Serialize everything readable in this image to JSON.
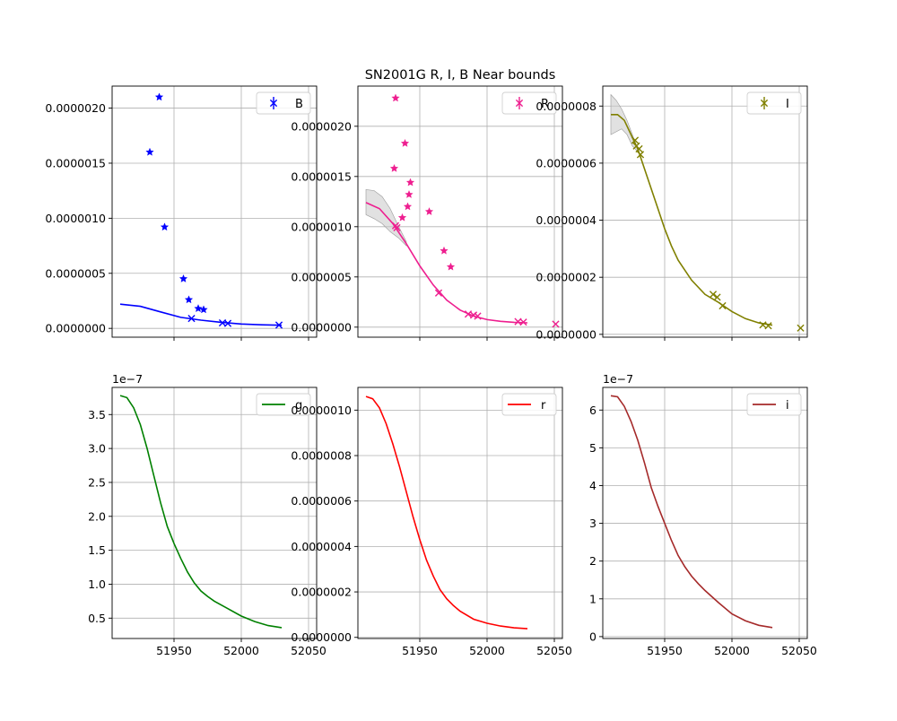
{
  "figure": {
    "title": "SN2001G  R, I, B Near bounds"
  },
  "chart_data": [
    {
      "type": "line",
      "legend": "B",
      "legend_location": "upper-right",
      "grid": true,
      "color": "#0000ff",
      "xlim": [
        51904,
        52056
      ],
      "ylim": [
        -8e-08,
        2.2e-06
      ],
      "xticks": [
        51950,
        52000,
        52050
      ],
      "xtick_labels": [
        "",
        "",
        ""
      ],
      "yticks": [
        0,
        5e-07,
        1e-06,
        1.5e-06,
        2e-06
      ],
      "ytick_labels": [
        "0.0000000",
        "0.0000005",
        "0.0000010",
        "0.0000015",
        "0.0000020"
      ],
      "scale_label": "",
      "model": {
        "x": [
          51910,
          51925,
          51940,
          51955,
          51970,
          51985,
          52000,
          52015,
          52030
        ],
        "y": [
          2.2e-07,
          2e-07,
          1.5e-07,
          1e-07,
          7.5e-08,
          5.5e-08,
          4e-08,
          3.2e-08,
          2.8e-08
        ]
      },
      "band": null,
      "detections": {
        "x": [
          51932,
          51939,
          51943,
          51957,
          51961,
          51968,
          51972
        ],
        "y": [
          1.6e-06,
          2.1e-06,
          9.2e-07,
          4.5e-07,
          2.6e-07,
          1.8e-07,
          1.7e-07
        ]
      },
      "upper_limits": {
        "x": [
          51963,
          51986,
          51990,
          52028
        ],
        "y": [
          9e-08,
          5e-08,
          4.5e-08,
          3e-08
        ]
      }
    },
    {
      "type": "line",
      "legend": "R",
      "legend_location": "upper-right",
      "grid": true,
      "color": "#ee1e8f",
      "xlim": [
        51904,
        52056
      ],
      "ylim": [
        -1e-07,
        2.4e-06
      ],
      "xticks": [
        51950,
        52000,
        52050
      ],
      "xtick_labels": [
        "",
        "",
        ""
      ],
      "yticks": [
        0,
        5e-07,
        1e-06,
        1.5e-06,
        2e-06
      ],
      "ytick_labels": [
        "0.0000000",
        "0.0000005",
        "0.0000010",
        "0.0000015",
        "0.0000020"
      ],
      "scale_label": "",
      "model": {
        "x": [
          51910,
          51920,
          51930,
          51940,
          51950,
          51960,
          51970,
          51980,
          51990,
          52000,
          52010,
          52020,
          52030
        ],
        "y": [
          1.24e-06,
          1.18e-06,
          1.03e-06,
          8.3e-07,
          6.1e-07,
          4.2e-07,
          2.7e-07,
          1.7e-07,
          1.1e-07,
          7.5e-08,
          5.8e-08,
          4.8e-08,
          4.3e-08
        ]
      },
      "band": {
        "x": [
          51910,
          51916,
          51922,
          51928,
          51934,
          51940
        ],
        "upper": [
          1.37e-06,
          1.36e-06,
          1.3e-06,
          1.18e-06,
          1.01e-06,
          8.5e-07
        ],
        "lower": [
          1.12e-06,
          1.08e-06,
          1.03e-06,
          9.5e-07,
          8.9e-07,
          8.1e-07
        ]
      },
      "detections": {
        "x": [
          51931,
          51932,
          51937,
          51939,
          51941,
          51942,
          51943,
          51957,
          51968,
          51973
        ],
        "y": [
          1.58e-06,
          2.28e-06,
          1.09e-06,
          1.83e-06,
          1.2e-06,
          1.32e-06,
          1.44e-06,
          1.15e-06,
          7.6e-07,
          6e-07
        ]
      },
      "upper_limits": {
        "x": [
          51932,
          51933,
          51964,
          51986,
          51990,
          51993,
          52023,
          52027,
          52051
        ],
        "y": [
          1.01e-06,
          9.9e-07,
          3.4e-07,
          1.3e-07,
          1.2e-07,
          1.1e-07,
          5.5e-08,
          5e-08,
          3e-08
        ]
      }
    },
    {
      "type": "line",
      "legend": "I",
      "legend_location": "upper-right",
      "grid": true,
      "color": "#808000",
      "xlim": [
        51904,
        52056
      ],
      "ylim": [
        -1e-08,
        8.7e-07
      ],
      "xticks": [
        51950,
        52000,
        52050
      ],
      "xtick_labels": [
        "",
        "",
        ""
      ],
      "yticks": [
        0,
        2e-07,
        4e-07,
        6e-07,
        8e-07
      ],
      "ytick_labels": [
        "0.0000000",
        "0.0000002",
        "0.0000004",
        "0.0000006",
        "0.0000008"
      ],
      "scale_label": "",
      "model": {
        "x": [
          51910,
          51915,
          51920,
          51925,
          51930,
          51935,
          51940,
          51945,
          51950,
          51955,
          51960,
          51970,
          51980,
          51990,
          52000,
          52010,
          52020,
          52030
        ],
        "y": [
          7.7e-07,
          7.7e-07,
          7.5e-07,
          7e-07,
          6.5e-07,
          5.8e-07,
          5.1e-07,
          4.4e-07,
          3.7e-07,
          3.1e-07,
          2.6e-07,
          1.9e-07,
          1.4e-07,
          1.12e-07,
          8e-08,
          5.5e-08,
          4e-08,
          3.2e-08
        ]
      },
      "band": {
        "x": [
          51910,
          51914,
          51918,
          51922,
          51926,
          51930
        ],
        "upper": [
          8.4e-07,
          8.2e-07,
          7.9e-07,
          7.5e-07,
          7e-07,
          6.5e-07
        ],
        "lower": [
          7e-07,
          7.1e-07,
          7.2e-07,
          7e-07,
          6.6e-07,
          6.4e-07
        ]
      },
      "detections": {
        "x": [],
        "y": []
      },
      "upper_limits": {
        "x": [
          51928,
          51929,
          51931,
          51932,
          51986,
          51989,
          51993,
          52023,
          52027,
          52051
        ],
        "y": [
          6.8e-07,
          6.6e-07,
          6.5e-07,
          6.3e-07,
          1.4e-07,
          1.3e-07,
          1e-07,
          3.3e-08,
          3e-08,
          2.2e-08
        ]
      }
    },
    {
      "type": "line",
      "legend": "g",
      "legend_location": "upper-right",
      "grid": true,
      "color": "#008000",
      "xlim": [
        51904,
        52056
      ],
      "ylim": [
        0.2,
        3.9
      ],
      "xticks": [
        51950,
        52000,
        52050
      ],
      "xtick_labels": [
        "51950",
        "52000",
        "52050"
      ],
      "yticks": [
        0.5,
        1.0,
        1.5,
        2.0,
        2.5,
        3.0,
        3.5
      ],
      "ytick_labels": [
        "0.5",
        "1.0",
        "1.5",
        "2.0",
        "2.5",
        "3.0",
        "3.5"
      ],
      "scale_label": "1e−7",
      "model": {
        "x": [
          51910,
          51915,
          51920,
          51925,
          51930,
          51935,
          51940,
          51945,
          51950,
          51955,
          51960,
          51965,
          51970,
          51975,
          51980,
          51990,
          52000,
          52010,
          52020,
          52030
        ],
        "y": [
          3.78,
          3.75,
          3.6,
          3.35,
          3.0,
          2.6,
          2.2,
          1.85,
          1.6,
          1.38,
          1.18,
          1.02,
          0.9,
          0.82,
          0.75,
          0.64,
          0.53,
          0.45,
          0.39,
          0.36
        ]
      },
      "band": null,
      "detections": {
        "x": [],
        "y": []
      },
      "upper_limits": {
        "x": [],
        "y": []
      }
    },
    {
      "type": "line",
      "legend": "r",
      "legend_location": "upper-right",
      "grid": true,
      "color": "#ff0000",
      "xlim": [
        51904,
        52056
      ],
      "ylim": [
        -5e-09,
        1.1e-06
      ],
      "xticks": [
        51950,
        52000,
        52050
      ],
      "xtick_labels": [
        "51950",
        "52000",
        "52050"
      ],
      "yticks": [
        0,
        2e-07,
        4e-07,
        6e-07,
        8e-07,
        1e-06
      ],
      "ytick_labels": [
        "0.0000000",
        "0.0000002",
        "0.0000004",
        "0.0000006",
        "0.0000008",
        "0.0000010"
      ],
      "scale_label": "",
      "model": {
        "x": [
          51910,
          51915,
          51920,
          51925,
          51930,
          51935,
          51940,
          51945,
          51950,
          51955,
          51960,
          51965,
          51970,
          51975,
          51980,
          51990,
          52000,
          52010,
          52020,
          52030
        ],
        "y": [
          1.06e-06,
          1.05e-06,
          1.01e-06,
          9.4e-07,
          8.5e-07,
          7.5e-07,
          6.4e-07,
          5.3e-07,
          4.3e-07,
          3.4e-07,
          2.7e-07,
          2.1e-07,
          1.7e-07,
          1.4e-07,
          1.15e-07,
          8e-08,
          6.2e-08,
          5e-08,
          4.2e-08,
          3.8e-08
        ]
      },
      "band": null,
      "detections": {
        "x": [],
        "y": []
      },
      "upper_limits": {
        "x": [],
        "y": []
      }
    },
    {
      "type": "line",
      "legend": "i",
      "legend_location": "upper-right",
      "grid": true,
      "color": "#a52a2a",
      "xlim": [
        51904,
        52056
      ],
      "ylim": [
        -0.05,
        6.6
      ],
      "xticks": [
        51950,
        52000,
        52050
      ],
      "xtick_labels": [
        "51950",
        "52000",
        "52050"
      ],
      "yticks": [
        0,
        1,
        2,
        3,
        4,
        5,
        6
      ],
      "ytick_labels": [
        "0",
        "1",
        "2",
        "3",
        "4",
        "5",
        "6"
      ],
      "scale_label": "1e−7",
      "model": {
        "x": [
          51910,
          51915,
          51920,
          51925,
          51930,
          51935,
          51940,
          51945,
          51950,
          51955,
          51960,
          51965,
          51970,
          51975,
          51980,
          51990,
          52000,
          52010,
          52020,
          52030
        ],
        "y": [
          6.38,
          6.35,
          6.1,
          5.7,
          5.2,
          4.6,
          3.95,
          3.45,
          3.0,
          2.55,
          2.15,
          1.85,
          1.6,
          1.4,
          1.22,
          0.9,
          0.6,
          0.42,
          0.3,
          0.24
        ]
      },
      "band": null,
      "detections": {
        "x": [],
        "y": []
      },
      "upper_limits": {
        "x": [],
        "y": []
      }
    }
  ]
}
